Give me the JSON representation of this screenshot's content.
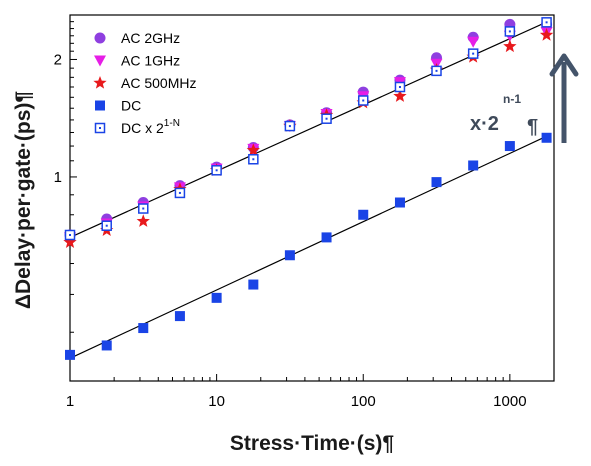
{
  "chart_data": {
    "type": "scatter",
    "title": "",
    "xlabel": "Stress·Time·(s)¶",
    "ylabel": "ΔDelay·per·gate·(ps)¶",
    "xscale": "log",
    "yscale": "log",
    "xlim": [
      1,
      2000
    ],
    "ylim": [
      0.3,
      2.6
    ],
    "x_ticks": [
      1,
      10,
      100,
      1000
    ],
    "x_tick_labels": [
      "1",
      "10",
      "100",
      "1000"
    ],
    "y_ticks": [
      1,
      2
    ],
    "y_tick_labels": [
      "1",
      "2"
    ],
    "grid": false,
    "legend_position": "top-left",
    "series": [
      {
        "name": "AC 2GHz",
        "marker": "circle",
        "color": "#8f3fe0",
        "x": [
          1,
          1.78,
          3.16,
          5.62,
          10,
          17.8,
          31.6,
          56.2,
          100,
          178,
          316,
          562,
          1000,
          1780
        ],
        "y": [
          0.71,
          0.78,
          0.86,
          0.95,
          1.06,
          1.19,
          1.36,
          1.46,
          1.65,
          1.77,
          2.02,
          2.28,
          2.46,
          2.46
        ]
      },
      {
        "name": "AC 1GHz",
        "marker": "triangle-down",
        "color": "#e61ee6",
        "x": [
          1,
          1.78,
          3.16,
          5.62,
          10,
          17.8,
          31.6,
          56.2,
          100,
          178,
          316,
          562,
          1000,
          1780
        ],
        "y": [
          0.7,
          0.76,
          0.84,
          0.94,
          1.05,
          1.18,
          1.35,
          1.45,
          1.61,
          1.75,
          1.95,
          2.22,
          2.3,
          2.35
        ]
      },
      {
        "name": "AC 500MHz",
        "marker": "star",
        "color": "#e8191c",
        "x": [
          1,
          1.78,
          3.16,
          5.62,
          10,
          17.8,
          31.6,
          56.2,
          100,
          178,
          316,
          562,
          1000,
          1780
        ],
        "y": [
          0.68,
          0.73,
          0.77,
          0.93,
          1.04,
          1.17,
          1.35,
          1.44,
          1.55,
          1.61,
          1.88,
          2.03,
          2.16,
          2.31
        ]
      },
      {
        "name": "DC",
        "marker": "square",
        "color": "#1a44e6",
        "x": [
          1,
          1.78,
          3.16,
          5.62,
          10,
          17.8,
          31.6,
          56.2,
          100,
          178,
          316,
          562,
          1000,
          1780
        ],
        "y": [
          0.35,
          0.37,
          0.41,
          0.44,
          0.49,
          0.53,
          0.63,
          0.7,
          0.8,
          0.86,
          0.97,
          1.07,
          1.2,
          1.26
        ]
      },
      {
        "name_parts": [
          "DC x 2",
          "1-N"
        ],
        "marker": "square-open",
        "color": "#1a44e6",
        "x": [
          1,
          1.78,
          3.16,
          5.62,
          10,
          17.8,
          31.6,
          56.2,
          100,
          178,
          316,
          562,
          1000,
          1780
        ],
        "y": [
          0.71,
          0.75,
          0.83,
          0.91,
          1.04,
          1.11,
          1.35,
          1.41,
          1.57,
          1.7,
          1.87,
          2.07,
          2.36,
          2.49
        ]
      }
    ],
    "fit_lines": [
      {
        "x": [
          1,
          1850
        ],
        "y": [
          0.7,
          2.51
        ],
        "color": "#000000"
      },
      {
        "x": [
          1,
          1850
        ],
        "y": [
          0.343,
          1.28
        ],
        "color": "#000000"
      }
    ],
    "annotation": {
      "base_text": "x·2",
      "sup_text": "n-1",
      "pilcrow": "¶",
      "arrow_color": "#44546a"
    }
  }
}
